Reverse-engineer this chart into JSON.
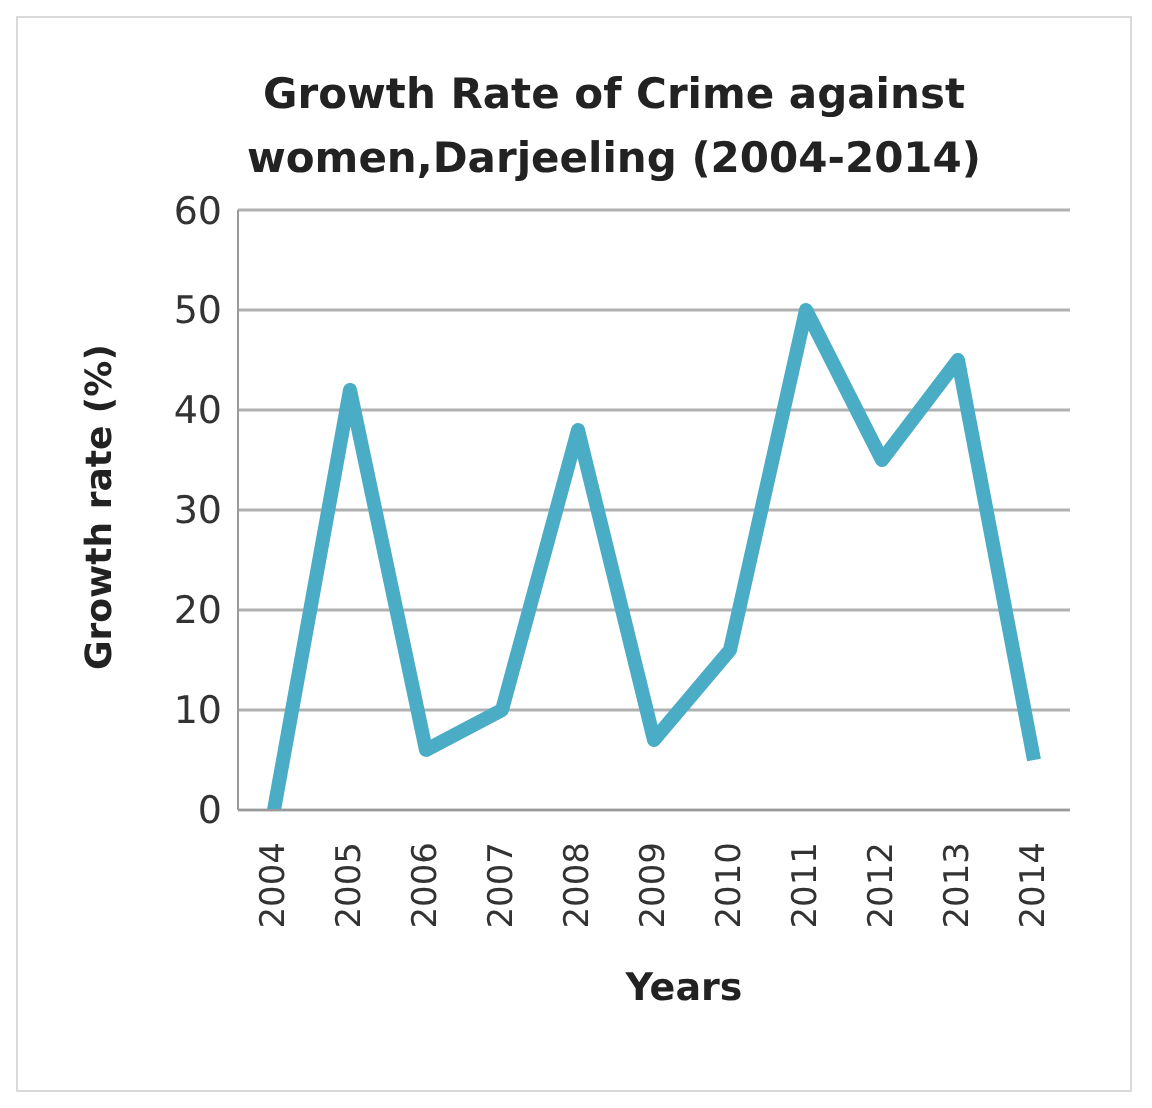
{
  "chart_data": {
    "type": "line",
    "title": "Growth Rate of Crime against women,Darjeeling (2004-2014)",
    "xlabel": "Years",
    "ylabel": "Growth rate (%)",
    "categories": [
      "2004",
      "2005",
      "2006",
      "2007",
      "2008",
      "2009",
      "2010",
      "2011",
      "2012",
      "2013",
      "2014"
    ],
    "series": [
      {
        "color": "#4bacc6",
        "values": [
          0,
          42,
          6,
          10,
          38,
          7,
          16,
          50,
          35,
          45,
          5
        ]
      }
    ],
    "ylim": [
      0,
      60
    ],
    "yticks": [
      0,
      10,
      20,
      30,
      40,
      50,
      60
    ],
    "grid": "y",
    "legend": false,
    "marker": "none",
    "line_style": "solid"
  }
}
